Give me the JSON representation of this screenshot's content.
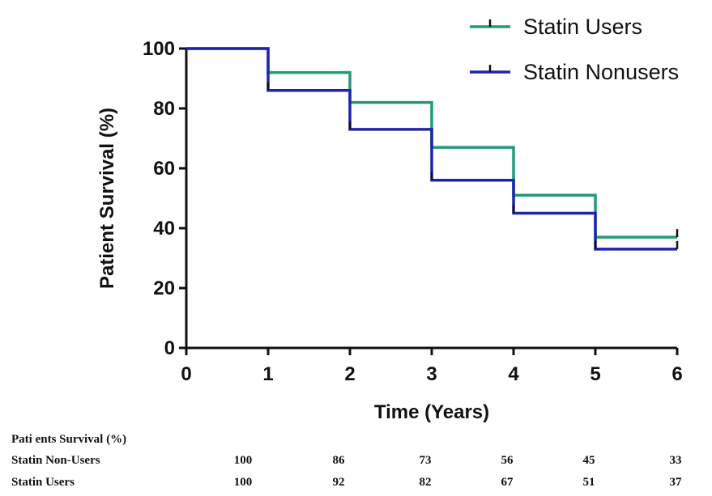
{
  "chart_data": {
    "type": "line",
    "step": true,
    "xlabel": "Time (Years)",
    "ylabel": "Patient Survival (%)",
    "xlim": [
      0,
      6
    ],
    "ylim": [
      0,
      100
    ],
    "x_ticks": [
      "0",
      "1",
      "2",
      "3",
      "4",
      "5",
      "6"
    ],
    "y_ticks": [
      "0",
      "20",
      "40",
      "60",
      "80",
      "100"
    ],
    "grid": false,
    "legend_position": "top-right",
    "x": [
      0,
      1,
      2,
      3,
      4,
      5,
      6
    ],
    "series": [
      {
        "name": "Statin Users",
        "color": "#1f9a7a",
        "values": [
          100,
          92,
          82,
          67,
          51,
          37,
          37
        ]
      },
      {
        "name": "Statin Nonusers",
        "color": "#1f24b0",
        "values": [
          100,
          86,
          73,
          56,
          45,
          33,
          33
        ]
      }
    ]
  },
  "table": {
    "caption": "Pati ents Survival (%)",
    "rows": [
      {
        "label": "Statin Non-Users",
        "values": [
          "100",
          "86",
          "73",
          "56",
          "45",
          "33"
        ]
      },
      {
        "label": "Statin Users",
        "values": [
          "100",
          "92",
          "82",
          "67",
          "51",
          "37"
        ]
      }
    ]
  }
}
